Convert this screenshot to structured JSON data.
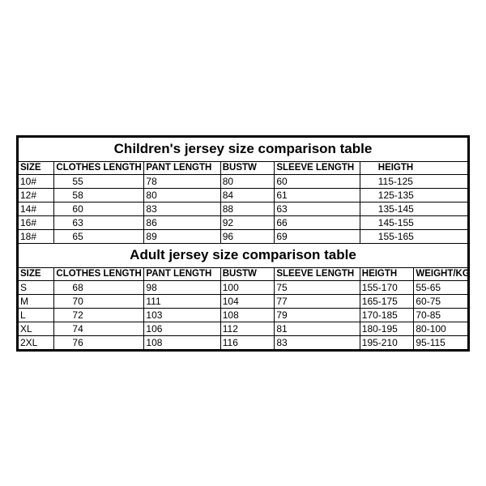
{
  "background_color": "#ffffff",
  "border_color": "#000000",
  "text_color": "#000000",
  "font_family": "Arial",
  "children_table": {
    "title": "Children's jersey size comparison table",
    "title_fontsize": 17,
    "header_fontsize": 11.5,
    "cell_fontsize": 12,
    "columns": [
      "SIZE",
      "CLOTHES LENGTH",
      "PANT LENGTH",
      "BUSTW",
      "SLEEVE LENGTH",
      "HEIGTH"
    ],
    "column_widths_pct": [
      8,
      20,
      17,
      12,
      19,
      24
    ],
    "rows": [
      [
        "10#",
        "55",
        "78",
        "80",
        "60",
        "115-125"
      ],
      [
        "12#",
        "58",
        "80",
        "84",
        "61",
        "125-135"
      ],
      [
        "14#",
        "60",
        "83",
        "88",
        "63",
        "135-145"
      ],
      [
        "16#",
        "63",
        "86",
        "92",
        "66",
        "145-155"
      ],
      [
        "18#",
        "65",
        "89",
        "96",
        "69",
        "155-165"
      ]
    ]
  },
  "adult_table": {
    "title": "Adult jersey size comparison table",
    "title_fontsize": 17,
    "header_fontsize": 11.5,
    "cell_fontsize": 12,
    "columns": [
      "SIZE",
      "CLOTHES LENGTH",
      "PANT LENGTH",
      "BUSTW",
      "SLEEVE LENGTH",
      "HEIGTH",
      "WEIGHT/KG"
    ],
    "column_widths_pct": [
      8,
      20,
      17,
      12,
      19,
      10,
      14
    ],
    "rows": [
      [
        "S",
        "68",
        "98",
        "100",
        "75",
        "155-170",
        "55-65"
      ],
      [
        "M",
        "70",
        "111",
        "104",
        "77",
        "165-175",
        "60-75"
      ],
      [
        "L",
        "72",
        "103",
        "108",
        "79",
        "170-185",
        "70-85"
      ],
      [
        "XL",
        "74",
        "106",
        "112",
        "81",
        "180-195",
        "80-100"
      ],
      [
        "2XL",
        "76",
        "108",
        "116",
        "83",
        "195-210",
        "95-115"
      ]
    ]
  }
}
